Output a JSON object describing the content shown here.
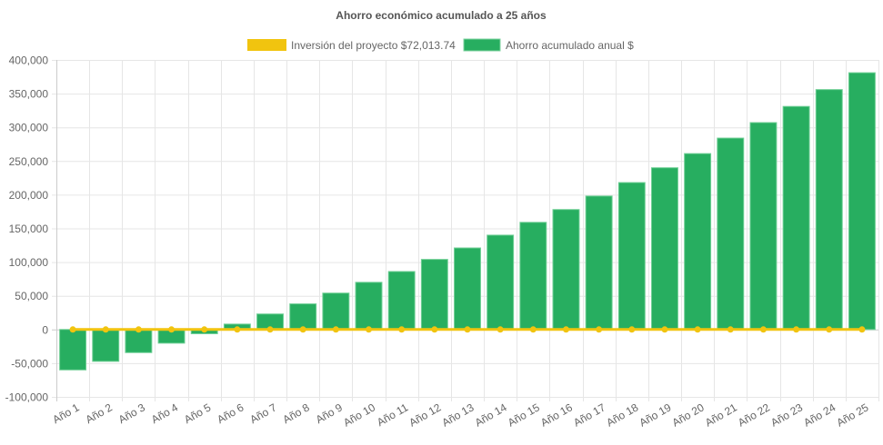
{
  "chart_data": {
    "type": "bar",
    "title": "Ahorro económico acumulado a 25 años",
    "categories": [
      "Año 1",
      "Año 2",
      "Año 3",
      "Año 4",
      "Año 5",
      "Año 6",
      "Año 7",
      "Año 8",
      "Año 9",
      "Año 10",
      "Año 11",
      "Año 12",
      "Año 13",
      "Año 14",
      "Año 15",
      "Año 16",
      "Año 17",
      "Año 18",
      "Año 19",
      "Año 20",
      "Año 21",
      "Año 22",
      "Año 23",
      "Año 24",
      "Año 25"
    ],
    "series": [
      {
        "name": "Inversión del proyecto $72,013.74",
        "type": "line",
        "color": "#f1c40f",
        "values": [
          0,
          0,
          0,
          0,
          0,
          0,
          0,
          0,
          0,
          0,
          0,
          0,
          0,
          0,
          0,
          0,
          0,
          0,
          0,
          0,
          0,
          0,
          0,
          0,
          0
        ]
      },
      {
        "name": "Ahorro acumulado anual $",
        "type": "bar",
        "color": "#27ae60",
        "values": [
          -60000,
          -47300,
          -34300,
          -20300,
          -6300,
          8000,
          23000,
          38000,
          54000,
          70000,
          86000,
          104000,
          121000,
          140000,
          159000,
          178000,
          198000,
          218000,
          240000,
          261000,
          284000,
          307000,
          331000,
          356000,
          381000
        ]
      }
    ],
    "ylim": [
      -100000,
      400000
    ],
    "yticks": [
      -100000,
      -50000,
      0,
      50000,
      100000,
      150000,
      200000,
      250000,
      300000,
      350000,
      400000
    ],
    "ytick_labels": [
      "-100,000",
      "-50,000",
      "0",
      "50,000",
      "100,000",
      "150,000",
      "200,000",
      "250,000",
      "300,000",
      "350,000",
      "400,000"
    ],
    "grid": true,
    "legend_position": "top"
  }
}
